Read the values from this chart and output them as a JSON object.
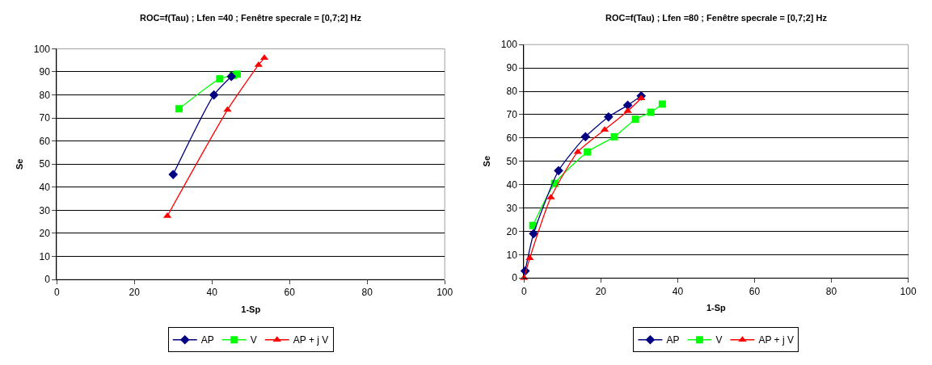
{
  "chart_data": [
    {
      "type": "line",
      "title": "ROC=f(Tau) ; Lfen =40 ; Fenêtre specrale = [0,7;2] Hz",
      "xlabel": "1-Sp",
      "ylabel": "Se",
      "xlim": [
        0,
        100
      ],
      "ylim": [
        0,
        100
      ],
      "xticks": [
        0,
        20,
        40,
        60,
        80,
        100
      ],
      "yticks": [
        0,
        10,
        20,
        30,
        40,
        50,
        60,
        70,
        80,
        90,
        100
      ],
      "grid": "y",
      "legend": "bottom",
      "series": [
        {
          "name": "AP",
          "color": "#000080",
          "marker": "diamond",
          "x": [
            30,
            40.5,
            45
          ],
          "values": [
            45.5,
            80,
            88
          ]
        },
        {
          "name": "V",
          "color": "#00ff00",
          "marker": "square",
          "x": [
            31.5,
            42,
            45.5,
            46.5
          ],
          "values": [
            74,
            87,
            88.5,
            89
          ]
        },
        {
          "name": "AP + j V",
          "color": "#ff0000",
          "marker": "triangle",
          "x": [
            28.5,
            44,
            52,
            53.5
          ],
          "values": [
            27.5,
            73.5,
            93,
            96
          ]
        }
      ]
    },
    {
      "type": "line",
      "title": "ROC=f(Tau) ; Lfen =80 ; Fenêtre specrale = [0,7;2] Hz",
      "xlabel": "1-Sp",
      "ylabel": "Se",
      "xlim": [
        0,
        100
      ],
      "ylim": [
        0,
        100
      ],
      "xticks": [
        0,
        20,
        40,
        60,
        80,
        100
      ],
      "yticks": [
        0,
        10,
        20,
        30,
        40,
        50,
        60,
        70,
        80,
        90,
        100
      ],
      "grid": "y",
      "legend": "bottom",
      "series": [
        {
          "name": "AP",
          "color": "#000080",
          "marker": "diamond",
          "x": [
            0.3,
            2.5,
            9,
            16,
            22,
            27,
            30.5
          ],
          "values": [
            3,
            19,
            46,
            60.5,
            69,
            74,
            78
          ]
        },
        {
          "name": "V",
          "color": "#00ff00",
          "marker": "square",
          "x": [
            2.3,
            8,
            16.5,
            23.5,
            29,
            33,
            36
          ],
          "values": [
            22.5,
            40.5,
            54,
            60.5,
            68,
            71,
            74.5
          ]
        },
        {
          "name": "AP + j V",
          "color": "#ff0000",
          "marker": "triangle",
          "x": [
            0,
            1.5,
            7,
            14,
            21,
            27,
            30.5
          ],
          "values": [
            0,
            8.5,
            34.5,
            54,
            63.5,
            71.5,
            77
          ]
        }
      ]
    }
  ]
}
